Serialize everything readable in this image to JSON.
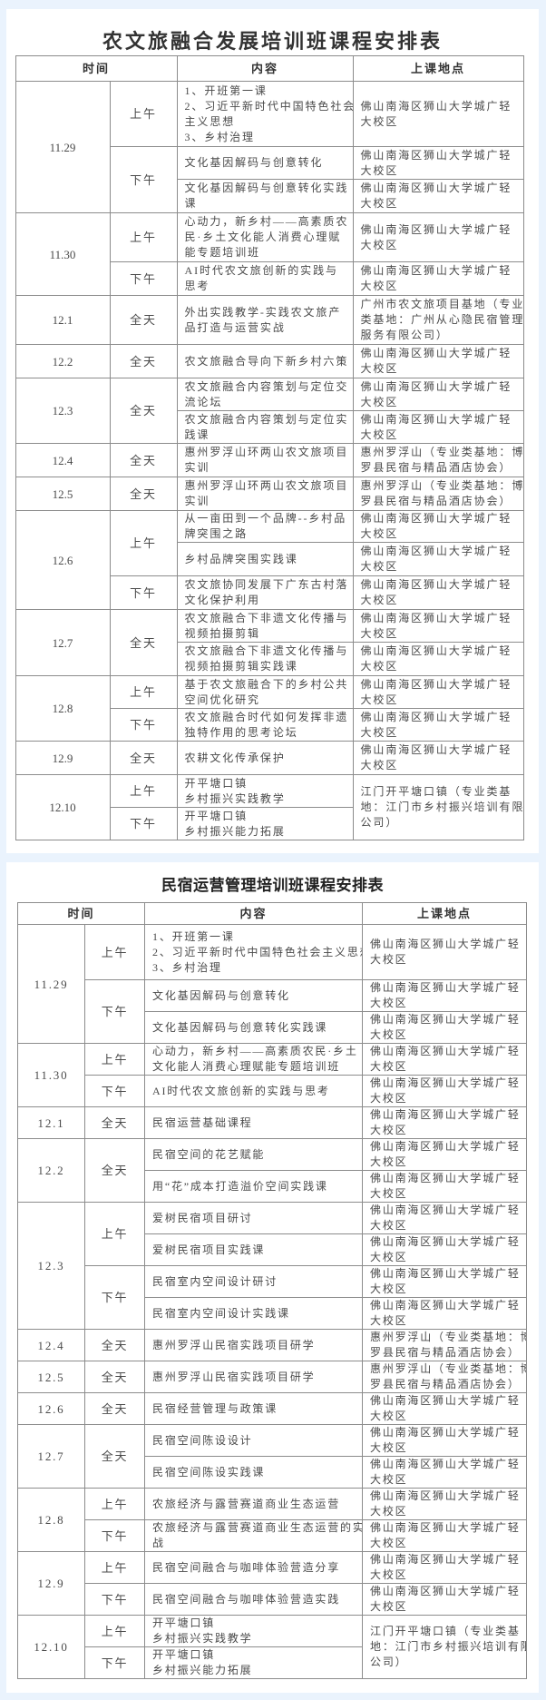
{
  "tables": [
    {
      "title": "农文旅融合发展培训班课程安排表",
      "headers": {
        "time": "时间",
        "content": "内容",
        "location": "上课地点"
      },
      "days": [
        {
          "date": "11.29",
          "periods": [
            {
              "period": "上午",
              "items": [
                {
                  "content": "1、开班第一课\n2、习近平新时代中国特色社会\n主义思想\n3、乡村治理",
                  "location": "佛山南海区狮山大学城广轻\n大校区"
                }
              ]
            },
            {
              "period": "下午",
              "items": [
                {
                  "content": "文化基因解码与创意转化",
                  "location": "佛山南海区狮山大学城广轻\n大校区"
                },
                {
                  "content": "文化基因解码与创意转化实践\n课",
                  "location": "佛山南海区狮山大学城广轻\n大校区"
                }
              ]
            }
          ]
        },
        {
          "date": "11.30",
          "periods": [
            {
              "period": "上午",
              "items": [
                {
                  "content": "心动力，新乡村——高素质农\n民·乡土文化能人消费心理赋\n能专题培训班",
                  "location": "佛山南海区狮山大学城广轻\n大校区"
                }
              ]
            },
            {
              "period": "下午",
              "items": [
                {
                  "content": "AI时代农文旅创新的实践与\n思考",
                  "location": "佛山南海区狮山大学城广轻\n大校区"
                }
              ]
            }
          ]
        },
        {
          "date": "12.1",
          "periods": [
            {
              "period": "全天",
              "items": [
                {
                  "content": "外出实践教学-实践农文旅产\n品打造与运营实战",
                  "location": "广州市农文旅项目基地（专业\n类基地：广州从心隐民宿管理\n服务有限公司）"
                }
              ]
            }
          ]
        },
        {
          "date": "12.2",
          "periods": [
            {
              "period": "全天",
              "items": [
                {
                  "content": "农文旅融合导向下新乡村六策",
                  "location": "佛山南海区狮山大学城广轻\n大校区"
                }
              ]
            }
          ]
        },
        {
          "date": "12.3",
          "periods": [
            {
              "period": "全天",
              "items": [
                {
                  "content": "农文旅融合内容策划与定位交\n流论坛",
                  "location": "佛山南海区狮山大学城广轻\n大校区"
                },
                {
                  "content": "农文旅融合内容策划与定位实\n践课",
                  "location": "佛山南海区狮山大学城广轻\n大校区"
                }
              ]
            }
          ]
        },
        {
          "date": "12.4",
          "periods": [
            {
              "period": "全天",
              "items": [
                {
                  "content": "惠州罗浮山环两山农文旅项目\n实训",
                  "location": "惠州罗浮山（专业类基地：博\n罗县民宿与精品酒店协会）"
                }
              ]
            }
          ]
        },
        {
          "date": "12.5",
          "periods": [
            {
              "period": "全天",
              "items": [
                {
                  "content": "惠州罗浮山环两山农文旅项目\n实训",
                  "location": "惠州罗浮山（专业类基地：博\n罗县民宿与精品酒店协会）"
                }
              ]
            }
          ]
        },
        {
          "date": "12.6",
          "periods": [
            {
              "period": "上午",
              "items": [
                {
                  "content": "从一亩田到一个品牌--乡村品\n牌突围之路",
                  "location": "佛山南海区狮山大学城广轻\n大校区"
                },
                {
                  "content": "乡村品牌突围实践课",
                  "location": "佛山南海区狮山大学城广轻\n大校区"
                }
              ]
            },
            {
              "period": "下午",
              "items": [
                {
                  "content": "农文旅协同发展下广东古村落\n文化保护利用",
                  "location": "佛山南海区狮山大学城广轻\n大校区"
                }
              ]
            }
          ]
        },
        {
          "date": "12.7",
          "periods": [
            {
              "period": "全天",
              "items": [
                {
                  "content": "农文旅融合下非遗文化传播与\n视频拍摄剪辑",
                  "location": "佛山南海区狮山大学城广轻\n大校区"
                },
                {
                  "content": "农文旅融合下非遗文化传播与\n视频拍摄剪辑实践课",
                  "location": "佛山南海区狮山大学城广轻\n大校区"
                }
              ]
            }
          ]
        },
        {
          "date": "12.8",
          "periods": [
            {
              "period": "上午",
              "items": [
                {
                  "content": "基于农文旅融合下的乡村公共\n空间优化研究",
                  "location": "佛山南海区狮山大学城广轻\n大校区"
                }
              ]
            },
            {
              "period": "下午",
              "items": [
                {
                  "content": "农文旅融合时代如何发挥非遗\n独特作用的思考论坛",
                  "location": "佛山南海区狮山大学城广轻\n大校区"
                }
              ]
            }
          ]
        },
        {
          "date": "12.9",
          "periods": [
            {
              "period": "全天",
              "items": [
                {
                  "content": "农耕文化传承保护",
                  "location": "佛山南海区狮山大学城广轻\n大校区"
                }
              ]
            }
          ]
        },
        {
          "date": "12.10",
          "shared_location": "江门开平塘口镇（专业类基\n地：江门市乡村振兴培训有限\n公司）",
          "periods": [
            {
              "period": "上午",
              "items": [
                {
                  "content": "开平塘口镇\n乡村振兴实践教学"
                }
              ]
            },
            {
              "period": "下午",
              "items": [
                {
                  "content": "开平塘口镇\n乡村振兴能力拓展"
                }
              ]
            }
          ]
        }
      ]
    },
    {
      "title": "民宿运营管理培训班课程安排表",
      "headers": {
        "time": "时间",
        "content": "内容",
        "location": "上课地点"
      },
      "days": [
        {
          "date": "11.29",
          "periods": [
            {
              "period": "上午",
              "items": [
                {
                  "content": "1、开班第一课\n2、习近平新时代中国特色社会主义思想\n3、乡村治理",
                  "location": "佛山南海区狮山大学城广轻\n大校区"
                }
              ]
            },
            {
              "period": "下午",
              "items": [
                {
                  "content": "文化基因解码与创意转化",
                  "location": "佛山南海区狮山大学城广轻\n大校区"
                },
                {
                  "content": "文化基因解码与创意转化实践课",
                  "location": "佛山南海区狮山大学城广轻\n大校区"
                }
              ]
            }
          ]
        },
        {
          "date": "11.30",
          "periods": [
            {
              "period": "上午",
              "items": [
                {
                  "content": "心动力，新乡村——高素质农民·乡土\n文化能人消费心理赋能专题培训班",
                  "location": "佛山南海区狮山大学城广轻\n大校区"
                }
              ]
            },
            {
              "period": "下午",
              "items": [
                {
                  "content": "AI时代农文旅创新的实践与思考",
                  "location": "佛山南海区狮山大学城广轻\n大校区"
                }
              ]
            }
          ]
        },
        {
          "date": "12.1",
          "periods": [
            {
              "period": "全天",
              "items": [
                {
                  "content": "民宿运营基础课程",
                  "location": "佛山南海区狮山大学城广轻\n大校区"
                }
              ]
            }
          ]
        },
        {
          "date": "12.2",
          "periods": [
            {
              "period": "全天",
              "items": [
                {
                  "content": "民宿空间的花艺赋能",
                  "location": "佛山南海区狮山大学城广轻\n大校区"
                },
                {
                  "content": "用“花”成本打造溢价空间实践课",
                  "location": "佛山南海区狮山大学城广轻\n大校区"
                }
              ]
            }
          ]
        },
        {
          "date": "12.3",
          "periods": [
            {
              "period": "上午",
              "items": [
                {
                  "content": "爱树民宿项目研讨",
                  "location": "佛山南海区狮山大学城广轻\n大校区"
                },
                {
                  "content": "爱树民宿项目实践课",
                  "location": "佛山南海区狮山大学城广轻\n大校区"
                }
              ]
            },
            {
              "period": "下午",
              "items": [
                {
                  "content": "民宿室内空间设计研讨",
                  "location": "佛山南海区狮山大学城广轻\n大校区"
                },
                {
                  "content": "民宿室内空间设计实践课",
                  "location": "佛山南海区狮山大学城广轻\n大校区"
                }
              ]
            }
          ]
        },
        {
          "date": "12.4",
          "periods": [
            {
              "period": "全天",
              "items": [
                {
                  "content": "惠州罗浮山民宿实践项目研学",
                  "location": "惠州罗浮山（专业类基地：博\n罗县民宿与精品酒店协会）"
                }
              ]
            }
          ]
        },
        {
          "date": "12.5",
          "periods": [
            {
              "period": "全天",
              "items": [
                {
                  "content": "惠州罗浮山民宿实践项目研学",
                  "location": "惠州罗浮山（专业类基地：博\n罗县民宿与精品酒店协会）"
                }
              ]
            }
          ]
        },
        {
          "date": "12.6",
          "periods": [
            {
              "period": "全天",
              "items": [
                {
                  "content": "民宿经营管理与政策课",
                  "location": "佛山南海区狮山大学城广轻\n大校区"
                }
              ]
            }
          ]
        },
        {
          "date": "12.7",
          "periods": [
            {
              "period": "全天",
              "items": [
                {
                  "content": "民宿空间陈设设计",
                  "location": "佛山南海区狮山大学城广轻\n大校区"
                },
                {
                  "content": "民宿空间陈设实践课",
                  "location": "佛山南海区狮山大学城广轻\n大校区"
                }
              ]
            }
          ]
        },
        {
          "date": "12.8",
          "periods": [
            {
              "period": "上午",
              "items": [
                {
                  "content": "农旅经济与露营赛道商业生态运营",
                  "location": "佛山南海区狮山大学城广轻\n大校区"
                }
              ]
            },
            {
              "period": "下午",
              "items": [
                {
                  "content": "农旅经济与露营赛道商业生态运营的实\n战",
                  "location": "佛山南海区狮山大学城广轻\n大校区"
                }
              ]
            }
          ]
        },
        {
          "date": "12.9",
          "periods": [
            {
              "period": "上午",
              "items": [
                {
                  "content": "民宿空间融合与咖啡体验营造分享",
                  "location": "佛山南海区狮山大学城广轻\n大校区"
                }
              ]
            },
            {
              "period": "下午",
              "items": [
                {
                  "content": "民宿空间融合与咖啡体验营造实践",
                  "location": "佛山南海区狮山大学城广轻\n大校区"
                }
              ]
            }
          ]
        },
        {
          "date": "12.10",
          "shared_location": "江门开平塘口镇（专业类基\n地：江门市乡村振兴培训有限\n公司）",
          "periods": [
            {
              "period": "上午",
              "items": [
                {
                  "content": "开平塘口镇\n乡村振兴实践教学"
                }
              ]
            },
            {
              "period": "下午",
              "items": [
                {
                  "content": "开平塘口镇\n乡村振兴能力拓展"
                }
              ]
            }
          ]
        }
      ]
    }
  ]
}
